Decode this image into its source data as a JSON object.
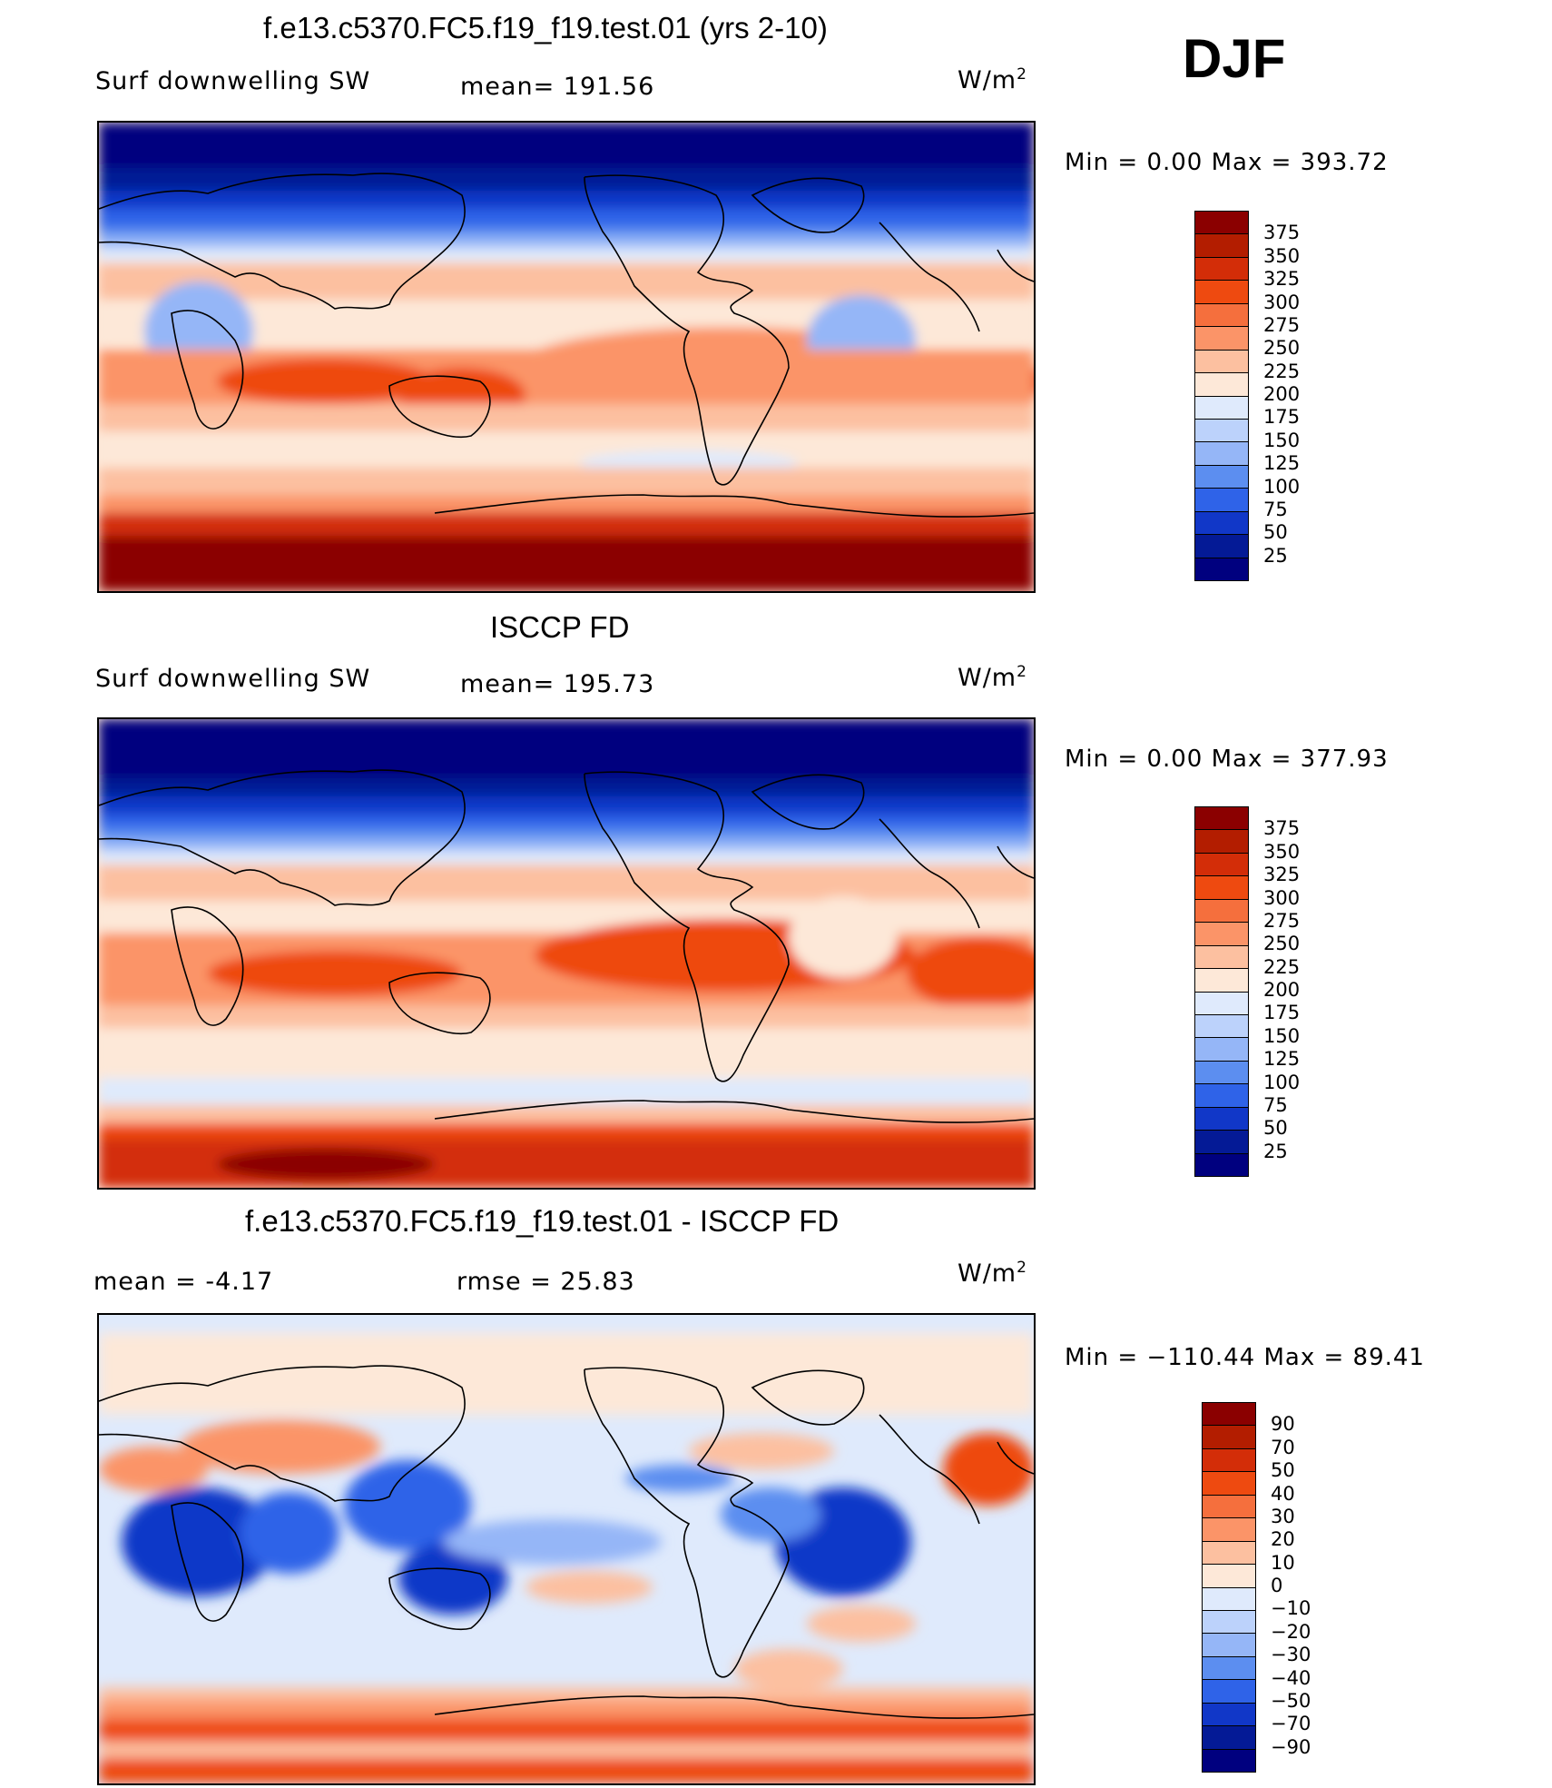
{
  "season": "DJF",
  "panels": [
    {
      "title": "f.e13.c5370.FC5.f19_f19.test.01 (yrs 2-10)",
      "left_label": "Surf downwelling SW",
      "center_label": "mean=  191.56",
      "units_base": "W/m",
      "units_exp": "2",
      "minmax": "Min  =     0.00  Max  =  393.72",
      "colorbar": {
        "levels": [
          "375",
          "350",
          "325",
          "300",
          "275",
          "250",
          "225",
          "200",
          "175",
          "150",
          "125",
          "100",
          "75",
          "50",
          "25"
        ],
        "colors": [
          "#8b0000",
          "#b31d00",
          "#d32d08",
          "#ee4a10",
          "#f56f3d",
          "#fb9468",
          "#fcc0a0",
          "#fde8d8",
          "#dfeafc",
          "#bcd2fb",
          "#95b6f7",
          "#5c8ef0",
          "#2f63e8",
          "#1137c8",
          "#041a96",
          "#00007f"
        ]
      }
    },
    {
      "title": "ISCCP FD",
      "left_label": "Surf downwelling SW",
      "center_label": "mean=  195.73",
      "units_base": "W/m",
      "units_exp": "2",
      "minmax": "Min  =     0.00  Max  =  377.93",
      "colorbar": {
        "levels": [
          "375",
          "350",
          "325",
          "300",
          "275",
          "250",
          "225",
          "200",
          "175",
          "150",
          "125",
          "100",
          "75",
          "50",
          "25"
        ],
        "colors": [
          "#8b0000",
          "#b31d00",
          "#d32d08",
          "#ee4a10",
          "#f56f3d",
          "#fb9468",
          "#fcc0a0",
          "#fde8d8",
          "#dfeafc",
          "#bcd2fb",
          "#95b6f7",
          "#5c8ef0",
          "#2f63e8",
          "#1137c8",
          "#041a96",
          "#00007f"
        ]
      }
    },
    {
      "title": "f.e13.c5370.FC5.f19_f19.test.01 - ISCCP FD",
      "left_label": "mean  =    -4.17",
      "center_label": "rmse  =    25.83",
      "units_base": "W/m",
      "units_exp": "2",
      "minmax": "Min  = −110.44  Max  =    89.41",
      "colorbar": {
        "levels": [
          "90",
          "70",
          "50",
          "40",
          "30",
          "20",
          "10",
          "0",
          "−10",
          "−20",
          "−30",
          "−40",
          "−50",
          "−70",
          "−90"
        ],
        "colors": [
          "#8b0000",
          "#b31d00",
          "#d32d08",
          "#ee4a10",
          "#f56f3d",
          "#fb9468",
          "#fcc0a0",
          "#fde8d8",
          "#dfeafc",
          "#bcd2fb",
          "#95b6f7",
          "#5c8ef0",
          "#2f63e8",
          "#1137c8",
          "#041a96",
          "#00007f"
        ]
      }
    }
  ]
}
